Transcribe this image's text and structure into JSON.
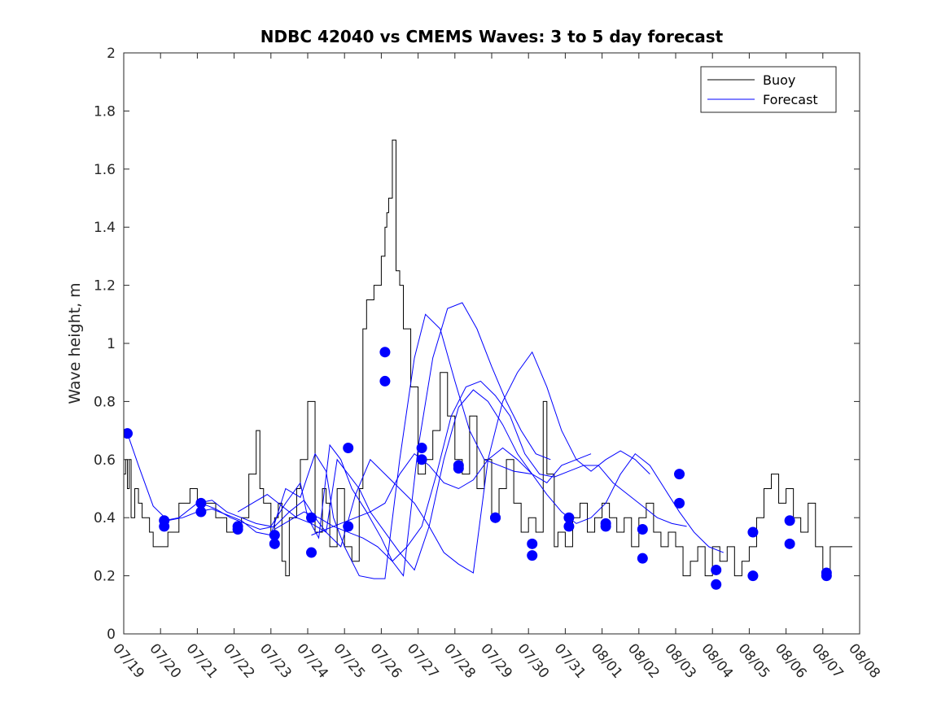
{
  "chart_data": {
    "type": "line",
    "title": "NDBC 42040 vs CMEMS Waves: 3 to 5 day forecast",
    "xlabel": "",
    "ylabel": "Wave height, m",
    "x_ticks": [
      "07/19",
      "07/20",
      "07/21",
      "07/22",
      "07/23",
      "07/24",
      "07/25",
      "07/26",
      "07/27",
      "07/28",
      "07/29",
      "07/30",
      "07/31",
      "08/01",
      "08/02",
      "08/03",
      "08/04",
      "08/05",
      "08/06",
      "08/07",
      "08/08"
    ],
    "xlim_days": [
      0,
      20
    ],
    "ylim": [
      0,
      2
    ],
    "y_ticks": [
      "0",
      "0.2",
      "0.4",
      "0.6",
      "0.8",
      "1",
      "1.2",
      "1.4",
      "1.6",
      "1.8",
      "2"
    ],
    "legend": {
      "position": "top-right",
      "entries": [
        {
          "label": "Buoy",
          "color": "#000000"
        },
        {
          "label": "Forecast",
          "color": "#0000ff"
        }
      ]
    },
    "buoy": {
      "name": "Buoy",
      "color": "#000000",
      "x": [
        0.0,
        0.05,
        0.1,
        0.15,
        0.2,
        0.3,
        0.4,
        0.5,
        0.6,
        0.7,
        0.8,
        1.0,
        1.2,
        1.5,
        1.8,
        2.0,
        2.5,
        2.8,
        3.0,
        3.2,
        3.4,
        3.6,
        3.7,
        3.8,
        4.0,
        4.1,
        4.2,
        4.3,
        4.4,
        4.5,
        4.7,
        4.8,
        5.0,
        5.2,
        5.4,
        5.5,
        5.6,
        5.8,
        6.0,
        6.1,
        6.2,
        6.4,
        6.5,
        6.6,
        6.8,
        7.0,
        7.1,
        7.15,
        7.2,
        7.3,
        7.4,
        7.5,
        7.6,
        7.8,
        8.0,
        8.2,
        8.4,
        8.6,
        8.8,
        9.0,
        9.2,
        9.4,
        9.6,
        9.8,
        10.0,
        10.2,
        10.4,
        10.6,
        10.8,
        11.0,
        11.2,
        11.4,
        11.5,
        11.7,
        11.8,
        12.0,
        12.2,
        12.4,
        12.6,
        12.8,
        13.0,
        13.2,
        13.4,
        13.6,
        13.8,
        14.0,
        14.2,
        14.4,
        14.6,
        14.8,
        15.0,
        15.2,
        15.4,
        15.6,
        15.8,
        16.0,
        16.2,
        16.4,
        16.6,
        16.8,
        17.0,
        17.2,
        17.4,
        17.6,
        17.8,
        18.0,
        18.2,
        18.4,
        18.6,
        18.8,
        19.0,
        19.2,
        19.4,
        19.6
      ],
      "y": [
        0.55,
        0.6,
        0.5,
        0.6,
        0.4,
        0.5,
        0.45,
        0.4,
        0.4,
        0.35,
        0.3,
        0.3,
        0.35,
        0.45,
        0.5,
        0.45,
        0.4,
        0.35,
        0.35,
        0.4,
        0.55,
        0.7,
        0.5,
        0.45,
        0.35,
        0.4,
        0.45,
        0.25,
        0.2,
        0.4,
        0.5,
        0.6,
        0.8,
        0.35,
        0.5,
        0.45,
        0.3,
        0.5,
        0.3,
        0.3,
        0.25,
        0.5,
        1.05,
        1.15,
        1.2,
        1.3,
        1.4,
        1.45,
        1.5,
        1.7,
        1.25,
        1.2,
        1.05,
        0.85,
        0.55,
        0.6,
        0.7,
        0.9,
        0.75,
        0.6,
        0.55,
        0.75,
        0.5,
        0.6,
        0.4,
        0.5,
        0.6,
        0.45,
        0.35,
        0.4,
        0.35,
        0.8,
        0.55,
        0.3,
        0.35,
        0.3,
        0.4,
        0.45,
        0.35,
        0.4,
        0.45,
        0.4,
        0.35,
        0.4,
        0.3,
        0.4,
        0.45,
        0.35,
        0.3,
        0.35,
        0.3,
        0.2,
        0.25,
        0.3,
        0.2,
        0.3,
        0.25,
        0.3,
        0.2,
        0.25,
        0.3,
        0.4,
        0.5,
        0.55,
        0.45,
        0.5,
        0.4,
        0.35,
        0.45,
        0.3,
        0.2,
        0.3,
        0.3,
        0.3
      ]
    },
    "forecast": {
      "name": "Forecast",
      "color": "#0000ff",
      "series": [
        {
          "x": [
            0.1,
            0.4,
            0.8,
            1.2,
            1.6,
            2.0,
            2.4,
            2.8,
            3.2,
            3.6,
            4.0,
            4.4,
            4.8,
            5.2,
            5.5,
            5.7,
            6.0,
            6.4,
            6.8,
            7.1,
            7.5,
            7.9,
            8.2,
            8.6,
            9.0,
            9.4,
            9.8,
            10.2,
            10.6,
            11.1
          ],
          "y": [
            0.69,
            0.58,
            0.44,
            0.39,
            0.4,
            0.42,
            0.43,
            0.41,
            0.39,
            0.35,
            0.34,
            0.5,
            0.47,
            0.62,
            0.56,
            0.4,
            0.3,
            0.2,
            0.19,
            0.19,
            0.6,
            0.95,
            1.1,
            1.05,
            0.87,
            0.7,
            0.6,
            0.58,
            0.56,
            0.55
          ]
        },
        {
          "x": [
            1.1,
            1.5,
            2.0,
            2.4,
            2.8,
            3.2,
            3.6,
            4.0,
            4.4,
            4.8,
            5.0,
            5.3,
            5.6,
            5.9,
            6.2,
            6.6,
            7.0,
            7.3,
            7.6,
            8.0,
            8.4,
            8.8,
            9.2,
            9.6,
            10.0,
            10.4,
            10.8,
            11.2,
            11.6
          ],
          "y": [
            0.39,
            0.4,
            0.45,
            0.46,
            0.42,
            0.4,
            0.38,
            0.37,
            0.45,
            0.52,
            0.4,
            0.33,
            0.65,
            0.6,
            0.5,
            0.42,
            0.33,
            0.25,
            0.2,
            0.64,
            0.95,
            1.12,
            1.14,
            1.05,
            0.92,
            0.8,
            0.7,
            0.62,
            0.6
          ]
        },
        {
          "x": [
            2.1,
            2.5,
            2.9,
            3.3,
            3.7,
            4.1,
            4.5,
            4.9,
            5.2,
            5.5,
            5.8,
            6.1,
            6.4,
            6.7,
            7.1,
            7.5,
            7.9,
            8.3,
            8.7,
            9.1,
            9.5,
            9.9,
            10.3,
            10.7,
            11.1,
            11.5,
            11.9,
            12.3,
            12.7
          ],
          "y": [
            0.45,
            0.43,
            0.4,
            0.38,
            0.36,
            0.37,
            0.42,
            0.46,
            0.4,
            0.35,
            0.6,
            0.55,
            0.5,
            0.42,
            0.35,
            0.28,
            0.22,
            0.37,
            0.6,
            0.78,
            0.84,
            0.8,
            0.72,
            0.62,
            0.55,
            0.52,
            0.58,
            0.6,
            0.62
          ]
        },
        {
          "x": [
            3.1,
            3.5,
            3.9,
            4.3,
            4.7,
            5.1,
            5.5,
            5.9,
            6.3,
            6.7,
            7.1,
            7.5,
            7.9,
            8.3,
            8.7,
            9.1,
            9.5,
            9.9,
            10.3,
            10.7,
            11.1,
            11.5,
            11.9,
            12.3,
            12.7,
            13.1,
            13.5,
            13.9,
            14.3
          ],
          "y": [
            0.42,
            0.45,
            0.48,
            0.44,
            0.4,
            0.38,
            0.35,
            0.3,
            0.48,
            0.6,
            0.55,
            0.5,
            0.45,
            0.37,
            0.28,
            0.24,
            0.21,
            0.6,
            0.8,
            0.9,
            0.97,
            0.85,
            0.7,
            0.6,
            0.56,
            0.6,
            0.63,
            0.6,
            0.55
          ]
        },
        {
          "x": [
            4.1,
            4.5,
            4.9,
            5.3,
            5.7,
            6.1,
            6.5,
            6.9,
            7.3,
            7.7,
            8.1,
            8.5,
            8.9,
            9.3,
            9.7,
            10.1,
            10.5,
            10.9,
            11.3,
            11.7,
            12.1,
            12.5,
            12.9,
            13.3,
            13.7,
            14.1,
            14.5,
            14.9,
            15.3
          ],
          "y": [
            0.36,
            0.39,
            0.42,
            0.4,
            0.37,
            0.35,
            0.33,
            0.3,
            0.25,
            0.3,
            0.37,
            0.55,
            0.75,
            0.85,
            0.87,
            0.82,
            0.75,
            0.62,
            0.55,
            0.54,
            0.56,
            0.58,
            0.58,
            0.52,
            0.48,
            0.44,
            0.4,
            0.38,
            0.37
          ]
        },
        {
          "x": [
            5.1,
            5.5,
            5.9,
            6.3,
            6.7,
            7.1,
            7.5,
            7.9,
            8.3,
            8.7,
            9.1,
            9.5,
            9.9,
            10.3,
            10.7,
            11.1,
            11.5,
            11.9,
            12.3,
            12.7,
            13.1,
            13.5,
            13.9,
            14.3,
            14.7,
            15.1,
            15.5,
            15.9,
            16.3
          ],
          "y": [
            0.34,
            0.36,
            0.38,
            0.4,
            0.42,
            0.45,
            0.55,
            0.62,
            0.58,
            0.52,
            0.5,
            0.53,
            0.6,
            0.64,
            0.6,
            0.55,
            0.48,
            0.42,
            0.38,
            0.4,
            0.45,
            0.55,
            0.62,
            0.58,
            0.5,
            0.42,
            0.35,
            0.3,
            0.28
          ]
        }
      ]
    },
    "markers": {
      "color": "#0000ff",
      "x": [
        0.1,
        1.1,
        1.1,
        2.1,
        2.1,
        3.1,
        3.1,
        4.1,
        4.1,
        5.1,
        5.1,
        6.1,
        6.1,
        7.1,
        7.1,
        8.1,
        8.1,
        9.1,
        9.1,
        10.1,
        10.1,
        11.1,
        11.1,
        12.1,
        12.1,
        13.1,
        13.1,
        14.1,
        14.1,
        15.1,
        15.1,
        16.1,
        16.1,
        17.1,
        17.1,
        18.1,
        18.1,
        19.1,
        19.1
      ],
      "y": [
        0.69,
        0.39,
        0.37,
        0.45,
        0.42,
        0.37,
        0.36,
        0.34,
        0.31,
        0.4,
        0.28,
        0.64,
        0.37,
        0.97,
        0.87,
        0.64,
        0.6,
        0.58,
        0.57,
        0.4,
        0.4,
        0.31,
        0.27,
        0.4,
        0.37,
        0.38,
        0.37,
        0.36,
        0.26,
        0.55,
        0.45,
        0.22,
        0.17,
        0.35,
        0.2,
        0.39,
        0.31,
        0.21,
        0.2
      ]
    }
  }
}
